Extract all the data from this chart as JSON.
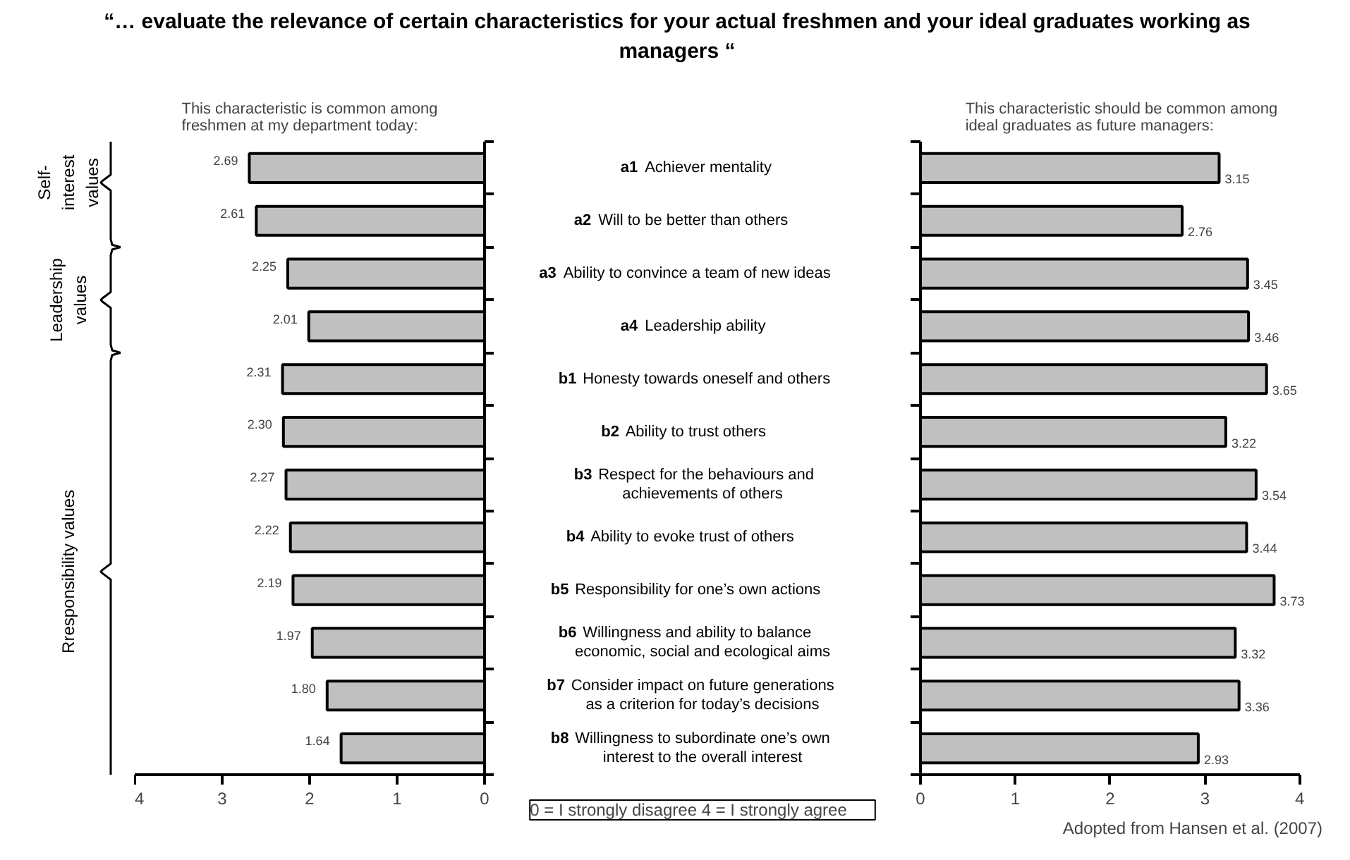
{
  "chart_data": [
    {
      "type": "bar",
      "orientation": "horizontal",
      "title": "“… evaluate the relevance of certain characteristics for your actual freshmen and your ideal graduates working as managers “",
      "subtitle": "This characteristic is common among freshmen at my department today:",
      "categories": [
        "a1 Achiever mentality",
        "a2  Will to be better than others",
        "a3 Ability to convince a team of new ideas",
        "a4 Leadership ability",
        "b1 Honesty towards oneself and others",
        "b2 Ability to trust others",
        "b3 Respect for the behaviours and\nachievements of others",
        "b4 Ability to evoke trust of others",
        "b5 Responsibility for one’s own actions",
        "b6 Willingness and ability to balance\neconomic, social and ecological aims",
        "b7 Consider impact on future generations\nas a criterion for today’s decisions",
        "b8 Willingness to subordinate one’s own\ninterest to the overall interest"
      ],
      "values": [
        2.69,
        2.61,
        2.25,
        2.01,
        2.31,
        2.3,
        2.27,
        2.22,
        2.19,
        1.97,
        1.8,
        1.64
      ],
      "value_labels": [
        "2.69",
        "2.61",
        "2.25",
        "2.01",
        "2.31",
        "2.30",
        "2.27",
        "2.22",
        "2.19",
        "1.97",
        "1.80",
        "1.64"
      ],
      "color": "#c0c0c0",
      "xlim": [
        4,
        0
      ],
      "xticks": [
        4,
        3,
        2,
        1,
        0
      ],
      "tick_labels": "x",
      "annotations": [
        "Self-interest values",
        "Leadership values",
        "Rresponsibility values",
        "0 = I strongly disagree       4 = I strongly agree"
      ]
    },
    {
      "type": "bar",
      "orientation": "horizontal",
      "subtitle": "This characteristic should be common among ideal graduates as future managers:",
      "categories": [
        "a1 Achiever mentality",
        "a2  Will to be better than others",
        "a3 Ability to convince a team of new ideas",
        "a4 Leadership ability",
        "b1 Honesty towards oneself and others",
        "b2 Ability to trust others",
        "b3 Respect for the behaviours and\nachievements of others",
        "b4 Ability to evoke trust of others",
        "b5 Responsibility for one’s own actions",
        "b6 Willingness and ability to balance\neconomic, social and ecological aims",
        "b7 Consider impact on future generations\nas a criterion for today’s decisions",
        "b8 Willingness to subordinate one’s own\ninterest to the overall interest"
      ],
      "values": [
        3.15,
        2.76,
        3.45,
        3.46,
        3.65,
        3.22,
        3.54,
        3.44,
        3.73,
        3.32,
        3.36,
        2.93
      ],
      "value_labels": [
        "3.15",
        "2.76",
        "3.45",
        "3.46",
        "3.65",
        "3.22",
        "3.54",
        "3.44",
        "3.73",
        "3.32",
        "3.36",
        "2.93"
      ],
      "color": "#c0c0c0",
      "xlim": [
        0,
        4
      ],
      "xticks": [
        0,
        1,
        2,
        3,
        4
      ],
      "tick_labels": "x",
      "annotations": [
        "Adopted from Hansen et al. (2007)"
      ]
    }
  ]
}
